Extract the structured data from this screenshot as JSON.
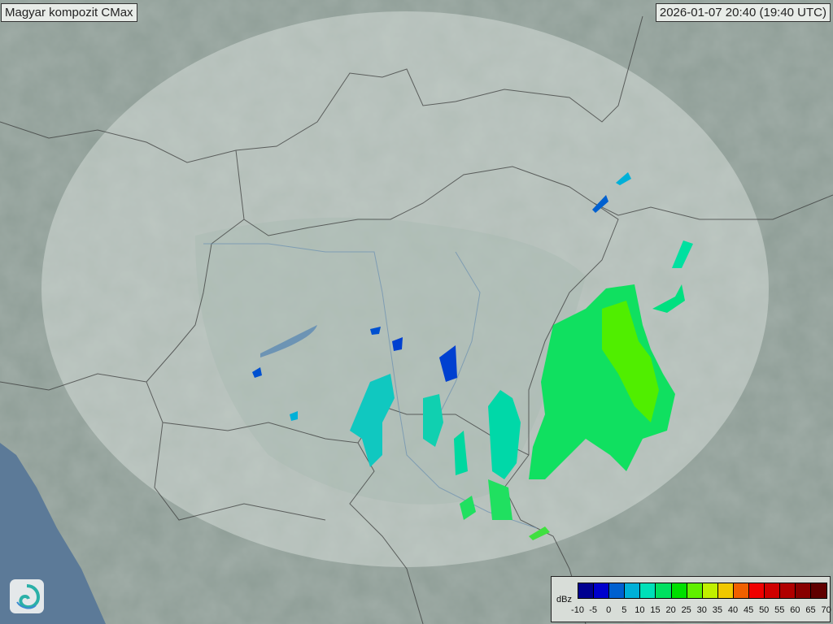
{
  "title": "Magyar kompozit  CMax",
  "timestamp": "2026-01-07 20:40 (19:40 UTC)",
  "legend": {
    "unit": "dBz",
    "ticks": [
      "-10",
      "-5",
      "0",
      "5",
      "10",
      "15",
      "20",
      "25",
      "30",
      "35",
      "40",
      "45",
      "50",
      "55",
      "60",
      "65",
      "70"
    ],
    "colors": [
      "#000090",
      "#0000cc",
      "#0060d0",
      "#00b0d8",
      "#00e0b8",
      "#00e060",
      "#00e000",
      "#60f000",
      "#c0f000",
      "#f0c800",
      "#f06000",
      "#f00000",
      "#d00000",
      "#b00000",
      "#880000",
      "#600000"
    ]
  },
  "colors": {
    "coverage": "#dfe6e2",
    "land": "#8e9d96",
    "sea": "#5c7a98"
  },
  "logo": {
    "icon": "weather-service-swirl-logo"
  }
}
